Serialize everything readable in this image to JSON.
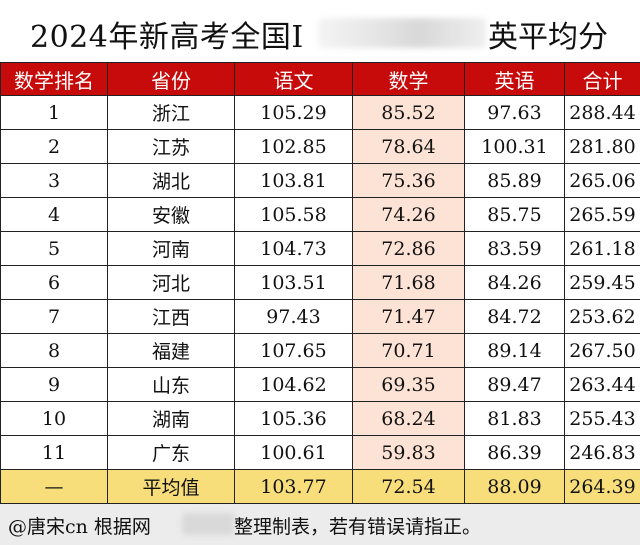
{
  "title": {
    "prefix": "2024年新高考全国Ⅰ",
    "suffix": "英平均分"
  },
  "table": {
    "headers": [
      "数学排名",
      "省份",
      "语文",
      "数学",
      "英语",
      "合计"
    ],
    "rows": [
      [
        "1",
        "浙江",
        "105.29",
        "85.52",
        "97.63",
        "288.44"
      ],
      [
        "2",
        "江苏",
        "102.85",
        "78.64",
        "100.31",
        "281.80"
      ],
      [
        "3",
        "湖北",
        "103.81",
        "75.36",
        "85.89",
        "265.06"
      ],
      [
        "4",
        "安徽",
        "105.58",
        "74.26",
        "85.75",
        "265.59"
      ],
      [
        "5",
        "河南",
        "104.73",
        "72.86",
        "83.59",
        "261.18"
      ],
      [
        "6",
        "河北",
        "103.51",
        "71.68",
        "84.26",
        "259.45"
      ],
      [
        "7",
        "江西",
        "97.43",
        "71.47",
        "84.72",
        "253.62"
      ],
      [
        "8",
        "福建",
        "107.65",
        "70.71",
        "89.14",
        "267.50"
      ],
      [
        "9",
        "山东",
        "104.62",
        "69.35",
        "89.47",
        "263.44"
      ],
      [
        "10",
        "湖南",
        "105.36",
        "68.24",
        "81.83",
        "255.43"
      ],
      [
        "11",
        "广东",
        "100.61",
        "59.83",
        "86.39",
        "246.83"
      ]
    ],
    "average_row": [
      "—",
      "平均值",
      "103.77",
      "72.54",
      "88.09",
      "264.39"
    ]
  },
  "footer": {
    "prefix": "@唐宋cn 根据网",
    "suffix": "整理制表，若有错误请指正。"
  },
  "colors": {
    "header_bg": "#c70a0a",
    "math_column_bg": "#fde3d6",
    "average_row_bg": "#f7de7b",
    "footer_bg": "#ececec"
  }
}
